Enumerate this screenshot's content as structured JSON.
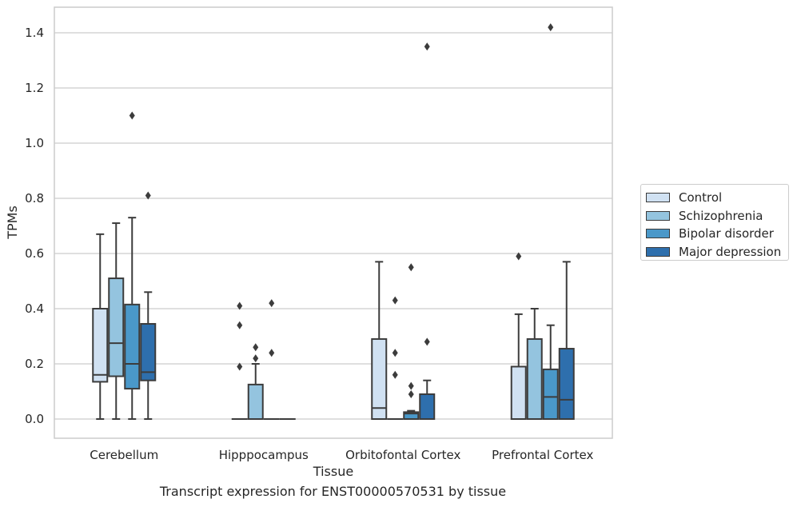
{
  "caption": "Transcript expression for ENST00000570531 by tissue",
  "chart_data": {
    "type": "box",
    "xlabel": "Tissue",
    "ylabel": "TPMs",
    "ylim": [
      -0.07,
      1.49
    ],
    "yticks": [
      "0.0",
      "0.2",
      "0.4",
      "0.6",
      "0.8",
      "1.0",
      "1.2",
      "1.4"
    ],
    "ytick_values": [
      0.0,
      0.2,
      0.4,
      0.6,
      0.8,
      1.0,
      1.2,
      1.4
    ],
    "grid": true,
    "legend_position": "right",
    "categories": [
      "Cerebellum",
      "Hipppocampus",
      "Orbitofontal Cortex",
      "Prefrontal Cortex"
    ],
    "series": [
      {
        "name": "Control",
        "color": "#d0e1f2",
        "boxes": [
          {
            "min": 0.0,
            "q1": 0.135,
            "median": 0.16,
            "q3": 0.4,
            "max": 0.67,
            "outliers": []
          },
          {
            "min": 0.0,
            "q1": 0.0,
            "median": 0.0,
            "q3": 0.0,
            "max": 0.0,
            "outliers": [
              0.41,
              0.34,
              0.19
            ]
          },
          {
            "min": 0.0,
            "q1": 0.0,
            "median": 0.04,
            "q3": 0.29,
            "max": 0.57,
            "outliers": []
          },
          {
            "min": 0.0,
            "q1": 0.0,
            "median": 0.0,
            "q3": 0.19,
            "max": 0.38,
            "outliers": [
              0.59
            ]
          }
        ]
      },
      {
        "name": "Schizophrenia",
        "color": "#94c4df",
        "boxes": [
          {
            "min": 0.0,
            "q1": 0.155,
            "median": 0.275,
            "q3": 0.51,
            "max": 0.71,
            "outliers": []
          },
          {
            "min": 0.0,
            "q1": 0.0,
            "median": 0.0,
            "q3": 0.125,
            "max": 0.2,
            "outliers": [
              0.26,
              0.22
            ]
          },
          {
            "min": 0.0,
            "q1": 0.0,
            "median": 0.0,
            "q3": 0.0,
            "max": 0.0,
            "outliers": [
              0.43,
              0.24,
              0.16
            ]
          },
          {
            "min": 0.0,
            "q1": 0.0,
            "median": 0.0,
            "q3": 0.29,
            "max": 0.4,
            "outliers": []
          }
        ]
      },
      {
        "name": "Bipolar disorder",
        "color": "#4a98c9",
        "boxes": [
          {
            "min": 0.0,
            "q1": 0.11,
            "median": 0.2,
            "q3": 0.415,
            "max": 0.73,
            "outliers": [
              1.1
            ]
          },
          {
            "min": 0.0,
            "q1": 0.0,
            "median": 0.0,
            "q3": 0.0,
            "max": 0.0,
            "outliers": [
              0.42,
              0.24
            ]
          },
          {
            "min": 0.0,
            "q1": 0.0,
            "median": 0.02,
            "q3": 0.025,
            "max": 0.03,
            "outliers": [
              0.55,
              0.12,
              0.09
            ]
          },
          {
            "min": 0.0,
            "q1": 0.0,
            "median": 0.08,
            "q3": 0.18,
            "max": 0.34,
            "outliers": [
              1.42
            ]
          }
        ]
      },
      {
        "name": "Major depression",
        "color": "#2e6fad",
        "boxes": [
          {
            "min": 0.0,
            "q1": 0.14,
            "median": 0.17,
            "q3": 0.345,
            "max": 0.46,
            "outliers": [
              0.81
            ]
          },
          {
            "min": 0.0,
            "q1": 0.0,
            "median": 0.0,
            "q3": 0.0,
            "max": 0.0,
            "outliers": []
          },
          {
            "min": 0.0,
            "q1": 0.0,
            "median": 0.0,
            "q3": 0.09,
            "max": 0.14,
            "outliers": [
              1.35,
              0.28
            ]
          },
          {
            "min": 0.0,
            "q1": 0.0,
            "median": 0.07,
            "q3": 0.255,
            "max": 0.57,
            "outliers": []
          }
        ]
      }
    ]
  }
}
